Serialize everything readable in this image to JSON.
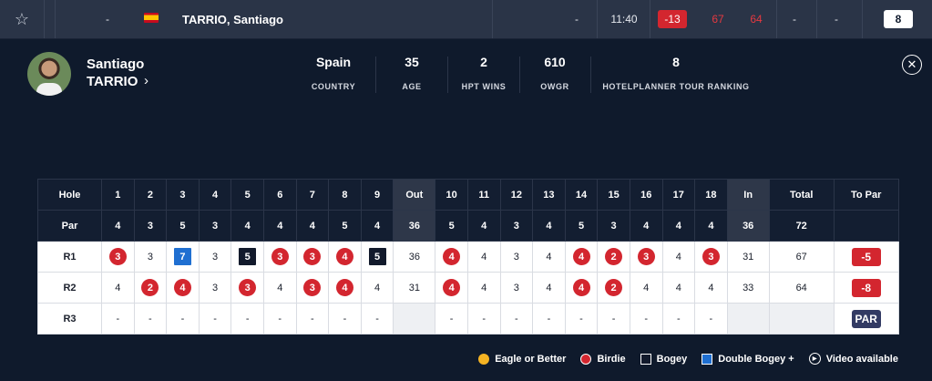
{
  "toprow": {
    "pos": "-",
    "player_name": "TARRIO, Santiago",
    "thru": "-",
    "tee_time": "11:40",
    "total": "-13",
    "r1": "67",
    "r2": "64",
    "r3": "-",
    "r4": "-",
    "blank": "-",
    "rank": "8"
  },
  "player": {
    "first_name": "Santiago",
    "last_name": "TARRIO",
    "chevron": "›"
  },
  "stats": [
    {
      "value": "Spain",
      "label": "COUNTRY"
    },
    {
      "value": "35",
      "label": "AGE"
    },
    {
      "value": "2",
      "label": "HPT WINS"
    },
    {
      "value": "610",
      "label": "OWGR"
    },
    {
      "value": "8",
      "label": "HOTELPLANNER TOUR RANKING"
    }
  ],
  "colors": {
    "birdie": "#d3262f",
    "eagle": "#f5b323",
    "bogey": "#121a2c",
    "double_bogey": "#1f6fd1",
    "background": "#0f1a2c"
  },
  "scorecard": {
    "header": [
      "Hole",
      "1",
      "2",
      "3",
      "4",
      "5",
      "6",
      "7",
      "8",
      "9",
      "Out",
      "10",
      "11",
      "12",
      "13",
      "14",
      "15",
      "16",
      "17",
      "18",
      "In",
      "Total",
      "To Par"
    ],
    "par": [
      "Par",
      "4",
      "3",
      "5",
      "3",
      "4",
      "4",
      "4",
      "5",
      "4",
      "36",
      "5",
      "4",
      "3",
      "4",
      "5",
      "3",
      "4",
      "4",
      "4",
      "36",
      "72",
      ""
    ],
    "rounds": [
      {
        "label": "R1",
        "scores": [
          "3",
          "3",
          "7",
          "3",
          "5",
          "3",
          "3",
          "4",
          "5",
          "36",
          "4",
          "4",
          "3",
          "4",
          "4",
          "2",
          "3",
          "4",
          "3",
          "31",
          "67"
        ],
        "types": [
          "birdie",
          "",
          "dbogey",
          "",
          "bogey",
          "birdie",
          "birdie",
          "birdie",
          "bogey",
          "sub",
          "birdie",
          "",
          "",
          "",
          "birdie",
          "birdie",
          "birdie",
          "",
          "birdie",
          "sub",
          ""
        ],
        "to_par": "-5",
        "to_par_type": "red"
      },
      {
        "label": "R2",
        "scores": [
          "4",
          "2",
          "4",
          "3",
          "3",
          "4",
          "3",
          "4",
          "4",
          "31",
          "4",
          "4",
          "3",
          "4",
          "4",
          "2",
          "4",
          "4",
          "4",
          "33",
          "64"
        ],
        "types": [
          "",
          "birdie",
          "birdie",
          "",
          "birdie",
          "",
          "birdie",
          "birdie",
          "",
          "sub",
          "birdie",
          "",
          "",
          "",
          "birdie",
          "birdie",
          "",
          "",
          "",
          "sub",
          ""
        ],
        "to_par": "-8",
        "to_par_type": "red"
      },
      {
        "label": "R3",
        "scores": [
          "-",
          "-",
          "-",
          "-",
          "-",
          "-",
          "-",
          "-",
          "-",
          "",
          "-",
          "-",
          "-",
          "-",
          "-",
          "-",
          "-",
          "-",
          "-",
          "",
          ""
        ],
        "types": [
          "",
          "",
          "",
          "",
          "",
          "",
          "",
          "",
          "",
          "emp",
          "",
          "",
          "",
          "",
          "",
          "",
          "",
          "",
          "",
          "emp",
          "emp"
        ],
        "to_par": "PAR",
        "to_par_type": "par"
      }
    ]
  },
  "legend": {
    "eagle": "Eagle or Better",
    "birdie": "Birdie",
    "bogey": "Bogey",
    "double_bogey": "Double Bogey +",
    "video": "Video available"
  }
}
